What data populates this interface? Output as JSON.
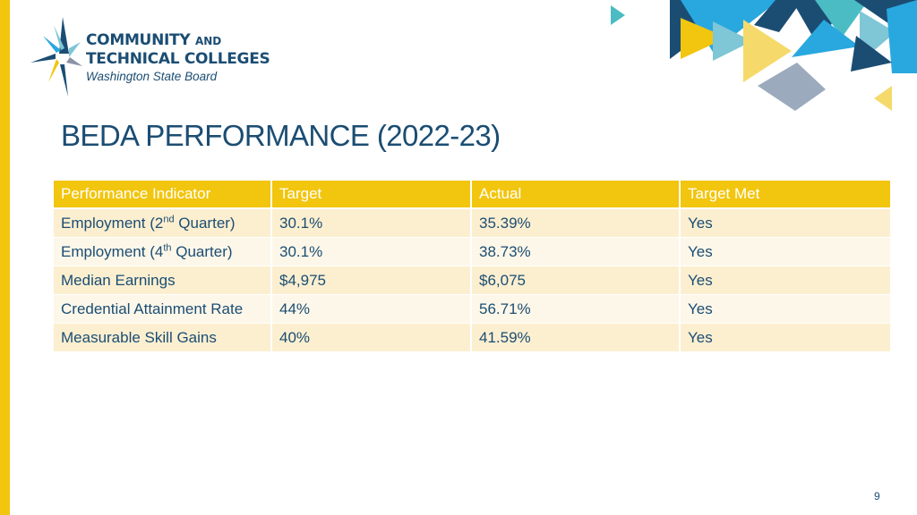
{
  "brand": {
    "line1": "COMMUNITY",
    "line1_small": "AND",
    "line2": "TECHNICAL COLLEGES",
    "line3": "Washington State Board"
  },
  "title": "BEDA PERFORMANCE (2022-23)",
  "table": {
    "headers": [
      "Performance Indicator",
      "Target",
      "Actual",
      "Target Met"
    ],
    "rows": [
      {
        "indicator": "Employment (2",
        "sup": "nd",
        "indicator_end": " Quarter)",
        "target": "30.1%",
        "actual": "35.39%",
        "met": "Yes"
      },
      {
        "indicator": "Employment (4",
        "sup": "th",
        "indicator_end": " Quarter)",
        "target": "30.1%",
        "actual": "38.73%",
        "met": "Yes"
      },
      {
        "indicator": "Median Earnings",
        "target": "$4,975",
        "actual": "$6,075",
        "met": "Yes"
      },
      {
        "indicator": "Credential Attainment Rate",
        "target": "44%",
        "actual": "56.71%",
        "met": "Yes"
      },
      {
        "indicator": "Measurable Skill Gains",
        "target": "40%",
        "actual": "41.59%",
        "met": "Yes"
      }
    ]
  },
  "page_number": "9",
  "colors": {
    "accent_yellow": "#f2c50e",
    "navy": "#1b4d73",
    "row_odd": "#fcefd0",
    "row_even": "#fdf7e9"
  }
}
